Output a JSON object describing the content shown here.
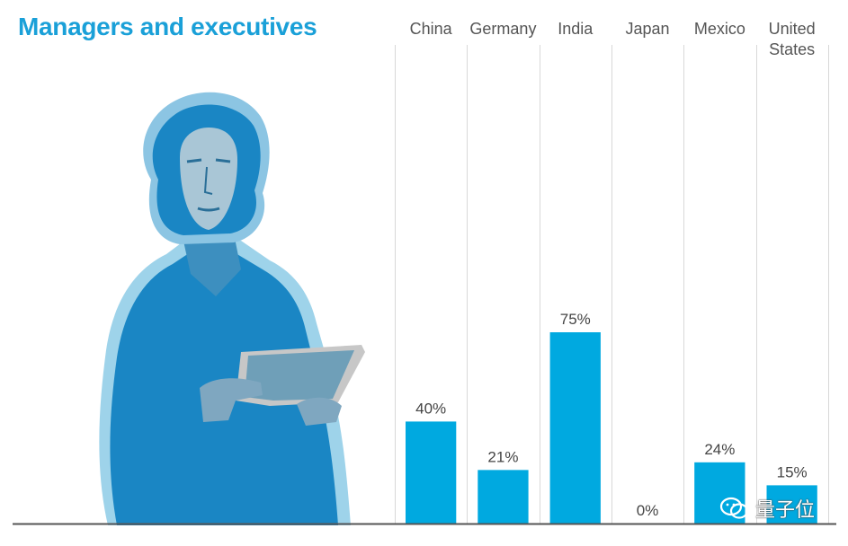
{
  "title": "Managers and executives",
  "watermark": {
    "text": "量子位"
  },
  "colors": {
    "bar": "#00a9e0",
    "title": "#1aa0d8",
    "grid": "#d8d8d8",
    "baseline": "#555555",
    "label": "#444444"
  },
  "chart_data": {
    "type": "bar",
    "title": "Managers and executives",
    "categories": [
      [
        "China"
      ],
      [
        "Germany"
      ],
      [
        "India"
      ],
      [
        "Japan"
      ],
      [
        "Mexico"
      ],
      [
        "United",
        "States"
      ]
    ],
    "values": [
      40,
      21,
      75,
      0,
      24,
      15
    ],
    "value_labels": [
      "40%",
      "21%",
      "75%",
      "0%",
      "24%",
      "15%"
    ],
    "ylim": [
      0,
      100
    ],
    "xlabel": "",
    "ylabel": ""
  }
}
